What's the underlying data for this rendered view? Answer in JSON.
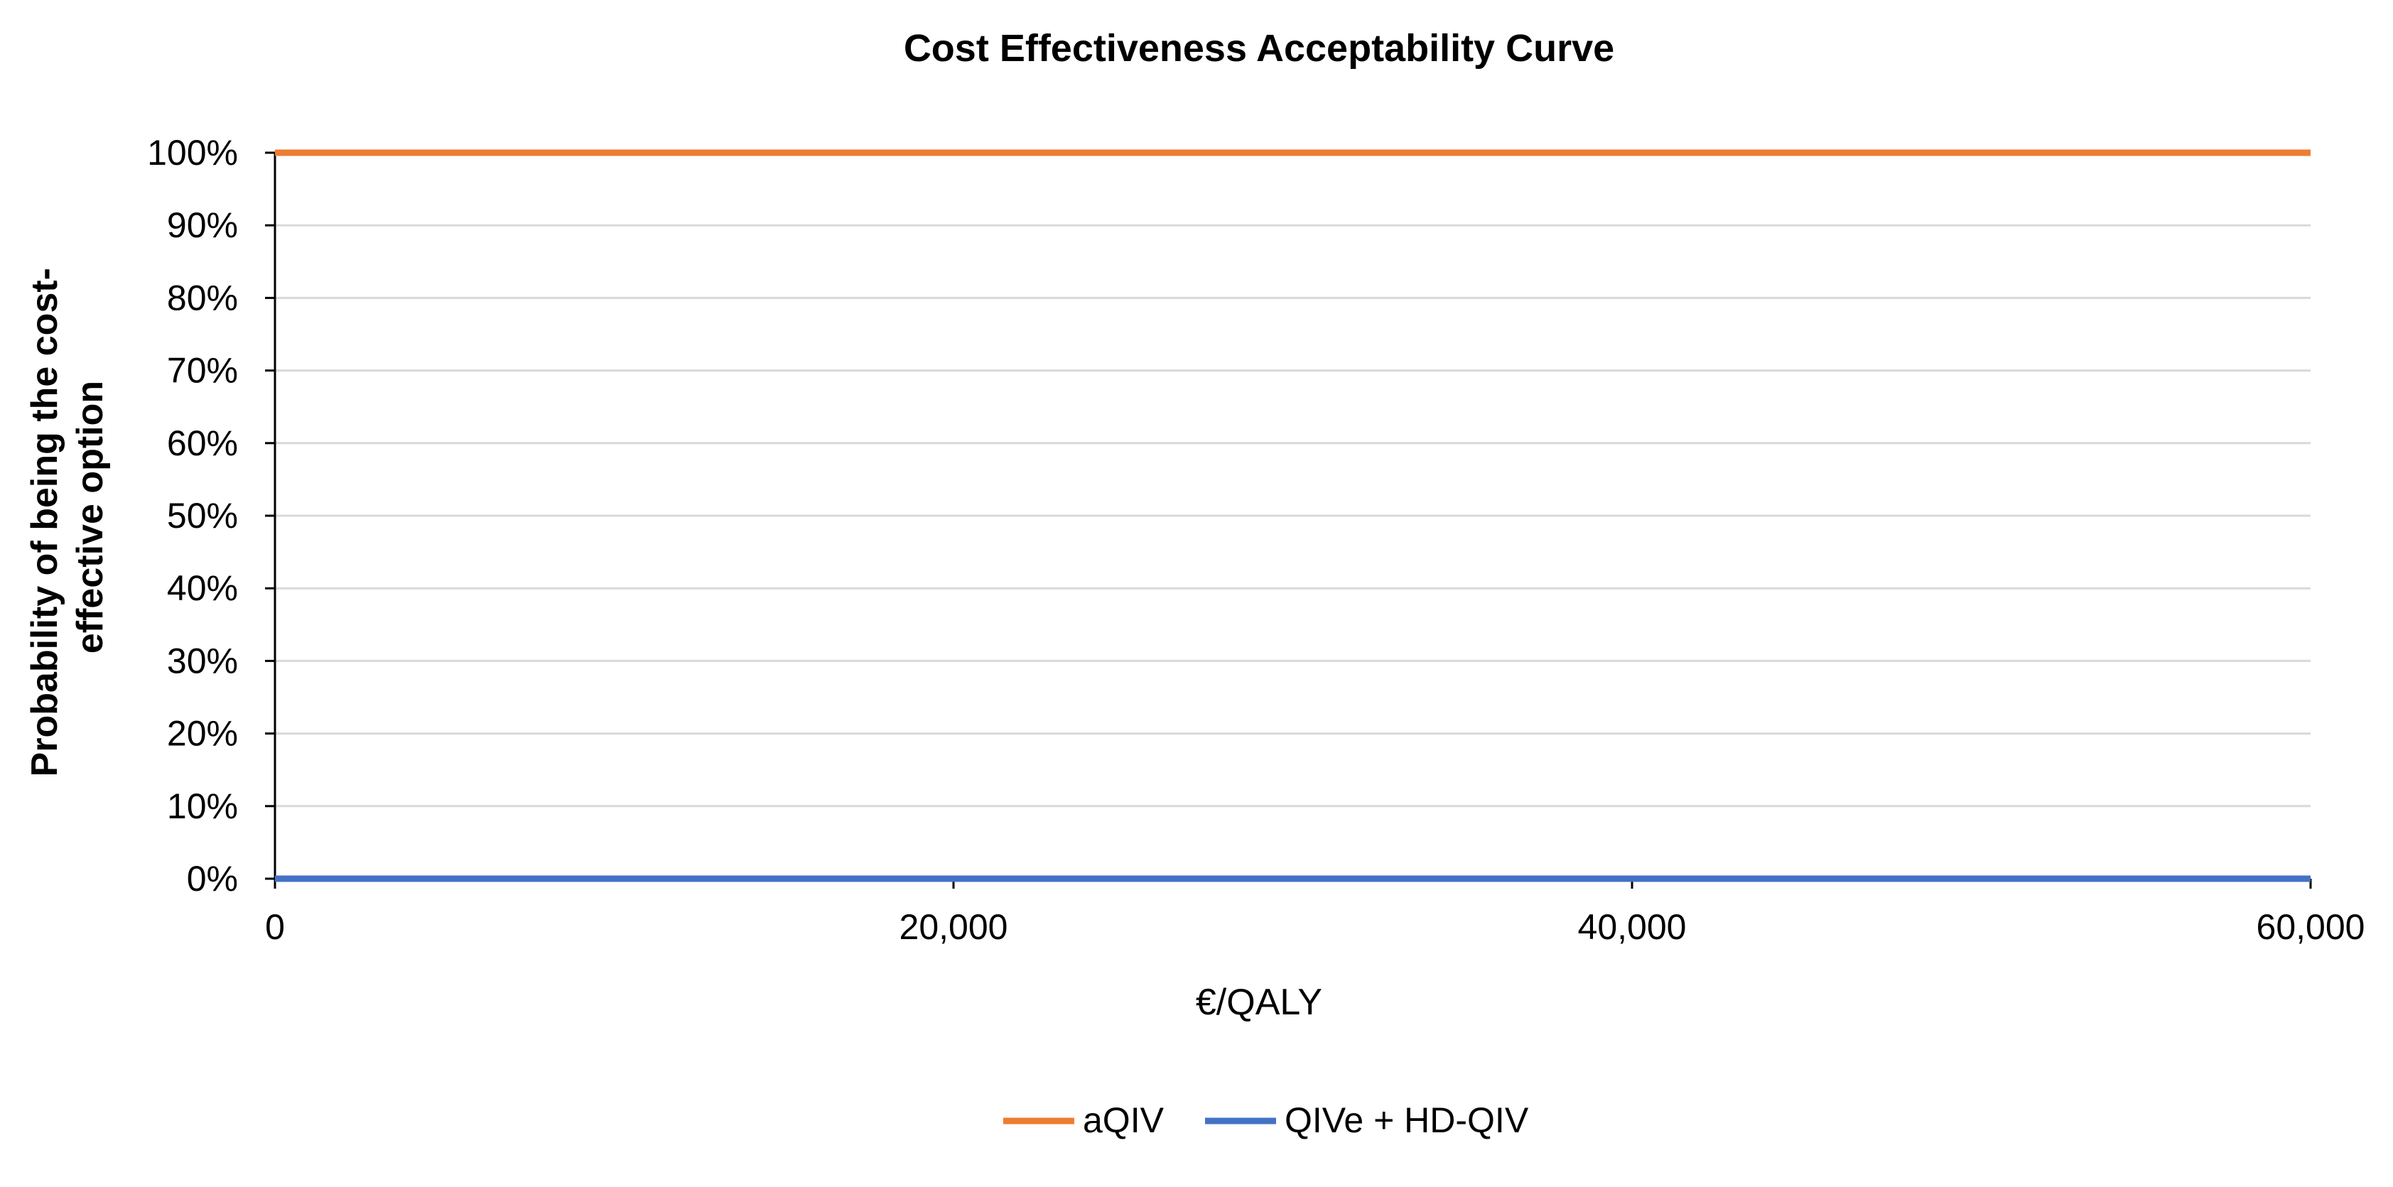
{
  "chart_data": {
    "type": "line",
    "title": "Cost Effectiveness Acceptability Curve",
    "xlabel": "€/QALY",
    "ylabel_lines": [
      "Probability of being the cost-",
      "effective option"
    ],
    "xlim": [
      0,
      60000
    ],
    "ylim": [
      0,
      100
    ],
    "x_ticks": [
      {
        "value": 0,
        "label": "0"
      },
      {
        "value": 20000,
        "label": "20,000"
      },
      {
        "value": 40000,
        "label": "40,000"
      },
      {
        "value": 60000,
        "label": "60,000"
      }
    ],
    "y_ticks": [
      {
        "value": 0,
        "label": "0%"
      },
      {
        "value": 10,
        "label": "10%"
      },
      {
        "value": 20,
        "label": "20%"
      },
      {
        "value": 30,
        "label": "30%"
      },
      {
        "value": 40,
        "label": "40%"
      },
      {
        "value": 50,
        "label": "50%"
      },
      {
        "value": 60,
        "label": "60%"
      },
      {
        "value": 70,
        "label": "70%"
      },
      {
        "value": 80,
        "label": "80%"
      },
      {
        "value": 90,
        "label": "90%"
      },
      {
        "value": 100,
        "label": "100%"
      }
    ],
    "grid": true,
    "legend_position": "bottom",
    "series": [
      {
        "name": "aQIV",
        "color": "#ED7D31",
        "x": [
          0,
          60000
        ],
        "y": [
          100,
          100
        ]
      },
      {
        "name": "QIVe + HD-QIV",
        "color": "#4472C4",
        "x": [
          0,
          60000
        ],
        "y": [
          0,
          0
        ]
      }
    ]
  }
}
